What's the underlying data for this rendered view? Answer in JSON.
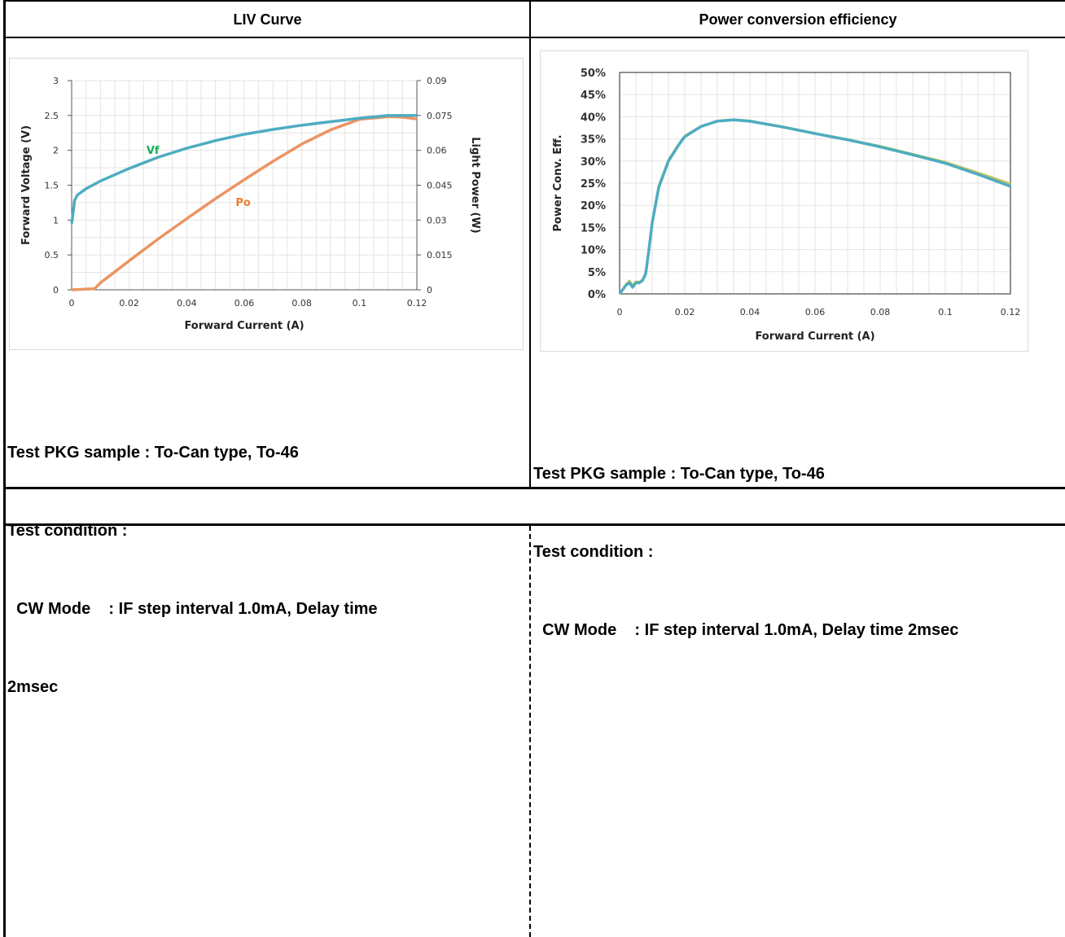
{
  "headers": {
    "left": "LIV Curve",
    "right": "Power conversion efficiency"
  },
  "notes_left": [
    "Test PKG sample : To-Can type, To-46",
    "Test condition :",
    "  CW Mode    : IF step interval 1.0mA, Delay time",
    "2msec"
  ],
  "notes_right": [
    "Test PKG sample : To-Can type, To-46",
    "Test condition :",
    "  CW Mode    : IF step interval 1.0mA, Delay time 2msec"
  ],
  "colors": {
    "vf": "#4eacc1",
    "po": "#ec9462",
    "vf_label": "#12b05a",
    "po_label": "#ed7d31",
    "pce": "#4eacc1",
    "pce_alt": "#c7c55a",
    "grid": "#e3e3e3"
  },
  "chart_data": [
    {
      "type": "line",
      "xlabel": "Forward Current (A)",
      "ylabel": "Forward Voltage (V)",
      "y2label": "Light Power (W)",
      "xlim": [
        0,
        0.12
      ],
      "ylim": [
        0,
        3
      ],
      "y2lim": [
        0,
        0.09
      ],
      "xticks": [
        "0",
        "0.02",
        "0.04",
        "0.06",
        "0.08",
        "0.1",
        "0.12"
      ],
      "yticks": [
        "0",
        "0.5",
        "1",
        "1.5",
        "2",
        "2.5",
        "3"
      ],
      "y2ticks": [
        "0",
        "0.015",
        "0.03",
        "0.045",
        "0.06",
        "0.075",
        "0.09"
      ],
      "grid": true,
      "series": [
        {
          "name": "Vf",
          "axis": "y",
          "x": [
            0,
            0.0005,
            0.001,
            0.002,
            0.005,
            0.01,
            0.02,
            0.03,
            0.04,
            0.05,
            0.06,
            0.07,
            0.08,
            0.09,
            0.1,
            0.11,
            0.12
          ],
          "y": [
            0.95,
            1.1,
            1.28,
            1.36,
            1.45,
            1.56,
            1.74,
            1.9,
            2.03,
            2.14,
            2.23,
            2.3,
            2.36,
            2.41,
            2.46,
            2.5,
            2.5
          ]
        },
        {
          "name": "Po",
          "axis": "y2",
          "x": [
            0,
            0.008,
            0.01,
            0.02,
            0.03,
            0.04,
            0.05,
            0.06,
            0.07,
            0.08,
            0.09,
            0.1,
            0.11,
            0.115,
            0.12
          ],
          "y": [
            0,
            0.0005,
            0.003,
            0.0125,
            0.0218,
            0.0306,
            0.0392,
            0.0474,
            0.0553,
            0.0627,
            0.0688,
            0.0733,
            0.0745,
            0.0743,
            0.0735
          ]
        }
      ]
    },
    {
      "type": "line",
      "xlabel": "Forward Current (A)",
      "ylabel": "Power Conv. Eff.",
      "xlim": [
        0,
        0.12
      ],
      "ylim": [
        0,
        50
      ],
      "xticks": [
        "0",
        "0.02",
        "0.04",
        "0.06",
        "0.08",
        "0.1",
        "0.12"
      ],
      "yticks": [
        "0%",
        "5%",
        "10%",
        "15%",
        "20%",
        "25%",
        "30%",
        "35%",
        "40%",
        "45%",
        "50%"
      ],
      "grid": true,
      "series": [
        {
          "x": [
            0,
            0.002,
            0.003,
            0.004,
            0.005,
            0.006,
            0.007,
            0.008,
            0.009,
            0.01,
            0.012,
            0.015,
            0.018,
            0.02,
            0.025,
            0.03,
            0.035,
            0.04,
            0.05,
            0.06,
            0.07,
            0.08,
            0.09,
            0.1,
            0.11,
            0.12
          ],
          "y": [
            0,
            2,
            2.5,
            1.5,
            2.5,
            2.5,
            3,
            4.5,
            10,
            16,
            24,
            30,
            33.5,
            35.5,
            37.8,
            39,
            39.3,
            39,
            37.7,
            36.2,
            34.8,
            33.2,
            31.4,
            29.5,
            27,
            24.3
          ]
        },
        {
          "x": [
            0,
            0.002,
            0.003,
            0.004,
            0.005,
            0.006,
            0.007,
            0.008,
            0.009,
            0.01,
            0.012,
            0.015,
            0.018,
            0.02,
            0.025,
            0.03,
            0.035,
            0.04,
            0.05,
            0.06,
            0.07,
            0.08,
            0.09,
            0.1,
            0.11,
            0.12
          ],
          "y": [
            0,
            2.2,
            3,
            2,
            2.8,
            2.7,
            3.2,
            4.8,
            10.5,
            16.5,
            24.5,
            30.3,
            33.7,
            35.7,
            37.9,
            39.1,
            39.4,
            39.1,
            37.8,
            36.3,
            34.9,
            33.4,
            31.6,
            29.8,
            27.4,
            24.9
          ]
        }
      ]
    }
  ]
}
